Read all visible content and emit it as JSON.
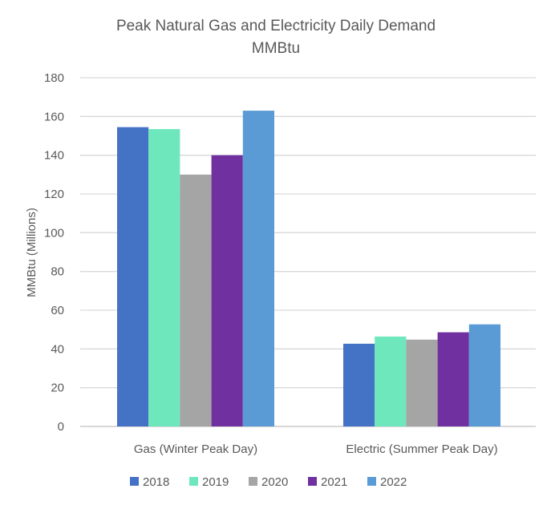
{
  "chart_data": {
    "type": "bar",
    "title": "Peak Natural Gas and Electricity Daily Demand",
    "subtitle": "MMBtu",
    "xlabel": "",
    "ylabel": "MMBtu (Millions)",
    "ylim": [
      0,
      180
    ],
    "yticks": [
      0,
      20,
      40,
      60,
      80,
      100,
      120,
      140,
      160,
      180
    ],
    "grid": true,
    "legend_position": "bottom",
    "categories": [
      "Gas (Winter Peak Day)",
      "Electric (Summer Peak Day)"
    ],
    "series": [
      {
        "name": "2018",
        "color": "#4472C4",
        "values": [
          154.5,
          42.7
        ]
      },
      {
        "name": "2019",
        "color": "#6EE7BD",
        "values": [
          153.5,
          46.4
        ]
      },
      {
        "name": "2020",
        "color": "#A5A5A5",
        "values": [
          130,
          44.8
        ]
      },
      {
        "name": "2021",
        "color": "#7030A0",
        "values": [
          140,
          48.6
        ]
      },
      {
        "name": "2022",
        "color": "#5B9BD5",
        "values": [
          163,
          52.7
        ]
      }
    ]
  }
}
